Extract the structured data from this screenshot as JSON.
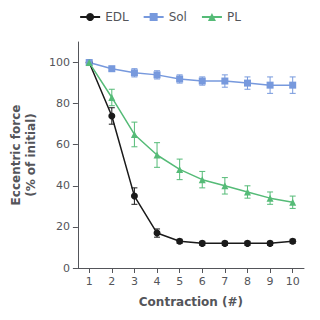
{
  "chart_data": {
    "type": "line",
    "x": [
      1,
      2,
      3,
      4,
      5,
      6,
      7,
      8,
      9,
      10
    ],
    "series": [
      {
        "name": "EDL",
        "color": "#1a1a1a",
        "marker": "circle",
        "values": [
          100,
          74,
          35,
          17,
          13,
          12,
          12,
          12,
          12,
          13
        ],
        "errors": [
          0,
          4,
          4,
          2,
          1,
          1,
          1,
          1,
          1,
          1
        ]
      },
      {
        "name": "Sol",
        "color": "#7799DD",
        "marker": "square",
        "values": [
          100,
          97,
          95,
          94,
          92,
          91,
          91,
          90,
          89,
          89
        ],
        "errors": [
          0,
          1,
          2,
          2,
          2,
          2,
          3,
          3,
          4,
          4
        ]
      },
      {
        "name": "PL",
        "color": "#55BB77",
        "marker": "triangle",
        "values": [
          100,
          83,
          65,
          55,
          48,
          43,
          40,
          37,
          34,
          32
        ],
        "errors": [
          0,
          4,
          6,
          6,
          5,
          4,
          4,
          3,
          3,
          3
        ]
      }
    ],
    "xlabel": "Contraction (#)",
    "ylabel": "Eccentric force\n(% of initial)",
    "xlim": [
      0.5,
      10.5
    ],
    "ylim": [
      0,
      110
    ],
    "xticks": [
      1,
      2,
      3,
      4,
      5,
      6,
      7,
      8,
      9,
      10
    ],
    "yticks": [
      0,
      20,
      40,
      60,
      80,
      100
    ],
    "grid": false,
    "legend": "top"
  }
}
